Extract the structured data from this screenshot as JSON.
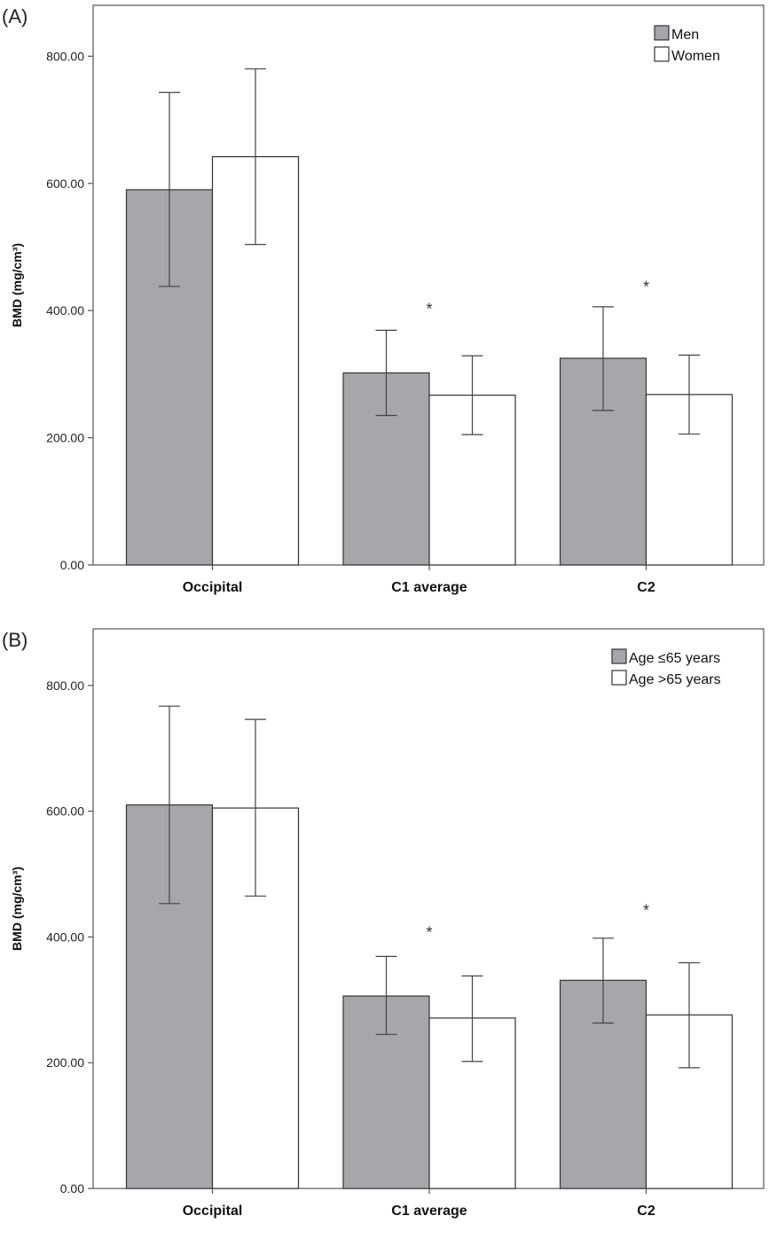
{
  "chart_data": [
    {
      "type": "bar",
      "panel_label": "(A)",
      "categories": [
        "Occipital",
        "C1 average",
        "C2"
      ],
      "ylabel": "BMD (mg/cm³)",
      "ylim": [
        0,
        880
      ],
      "yticks": [
        0,
        200,
        400,
        600,
        800
      ],
      "ytick_labels": [
        "0.00",
        "200.00",
        "400.00",
        "600.00",
        "800.00"
      ],
      "legend_position": "top-right",
      "series": [
        {
          "name": "Men",
          "color": "#a6a7ab",
          "values": [
            590,
            302,
            325
          ],
          "err_low": [
            438,
            235,
            243
          ],
          "err_high": [
            743,
            369,
            406
          ]
        },
        {
          "name": "Women",
          "color": "#ffffff",
          "values": [
            642,
            267,
            268
          ],
          "err_low": [
            504,
            205,
            206
          ],
          "err_high": [
            780,
            329,
            330
          ]
        }
      ],
      "annotations": [
        {
          "text": "*",
          "category": "C1 average",
          "value": 405
        },
        {
          "text": "*",
          "category": "C2",
          "value": 440
        }
      ]
    },
    {
      "type": "bar",
      "panel_label": "(B)",
      "categories": [
        "Occipital",
        "C1 average",
        "C2"
      ],
      "ylabel": "BMD (mg/cm³)",
      "ylim": [
        0,
        890
      ],
      "yticks": [
        0,
        200,
        400,
        600,
        800
      ],
      "ytick_labels": [
        "0.00",
        "200.00",
        "400.00",
        "600.00",
        "800.00"
      ],
      "legend_position": "top-right",
      "series": [
        {
          "name": "Age ≤65 years",
          "color": "#a6a7ab",
          "values": [
            610,
            306,
            331
          ],
          "err_low": [
            453,
            245,
            263
          ],
          "err_high": [
            767,
            369,
            398
          ]
        },
        {
          "name": "Age >65 years",
          "color": "#ffffff",
          "values": [
            605,
            271,
            276
          ],
          "err_low": [
            465,
            202,
            192
          ],
          "err_high": [
            746,
            338,
            359
          ]
        }
      ],
      "annotations": [
        {
          "text": "*",
          "category": "C1 average",
          "value": 410
        },
        {
          "text": "*",
          "category": "C2",
          "value": 445
        }
      ]
    }
  ]
}
